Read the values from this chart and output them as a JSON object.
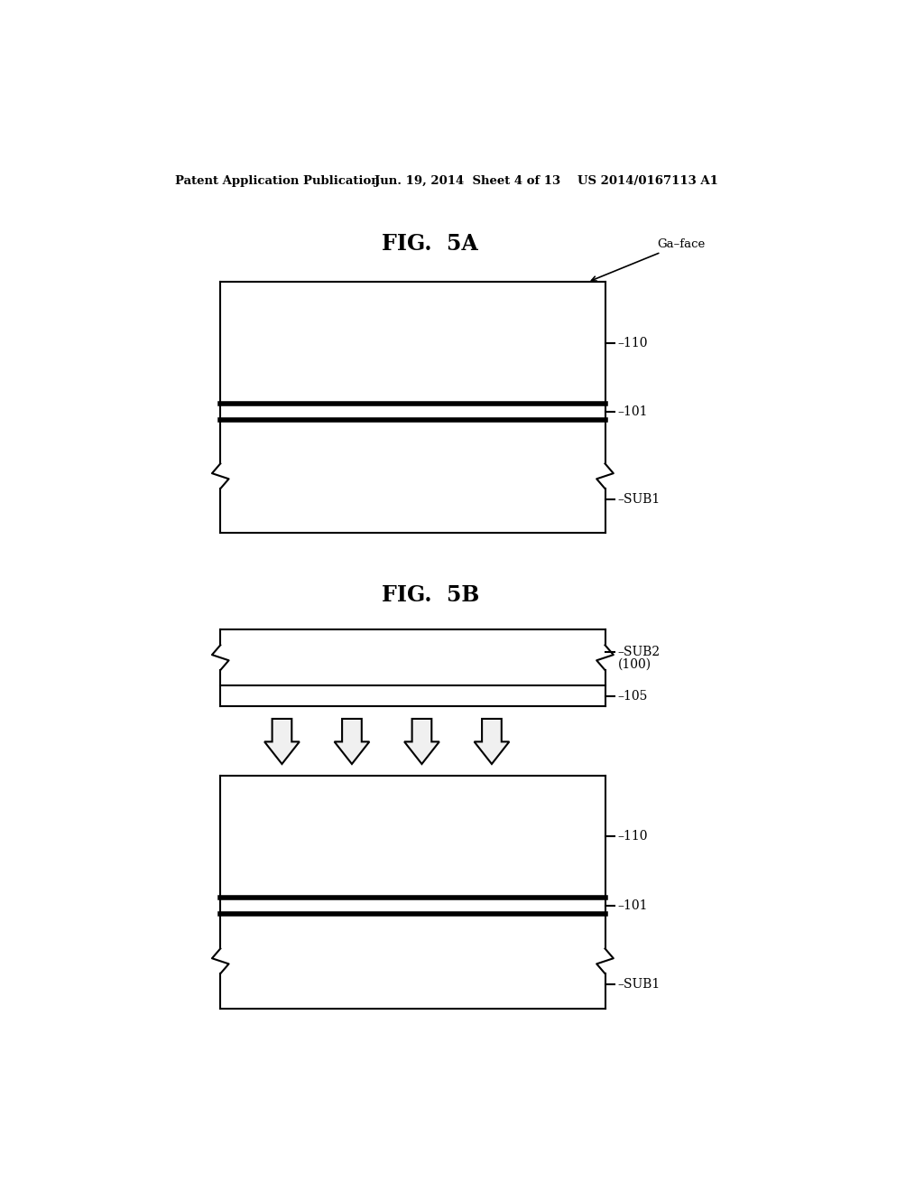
{
  "background_color": "#ffffff",
  "header_left": "Patent Application Publication",
  "header_center": "Jun. 19, 2014  Sheet 4 of 13",
  "header_right": "US 2014/0167113 A1",
  "fig5a_title": "FIG.  5A",
  "fig5b_title": "FIG.  5B",
  "line_color": "#000000",
  "arrow_fill": "#f0f0f0",
  "arrow_edge": "#000000"
}
